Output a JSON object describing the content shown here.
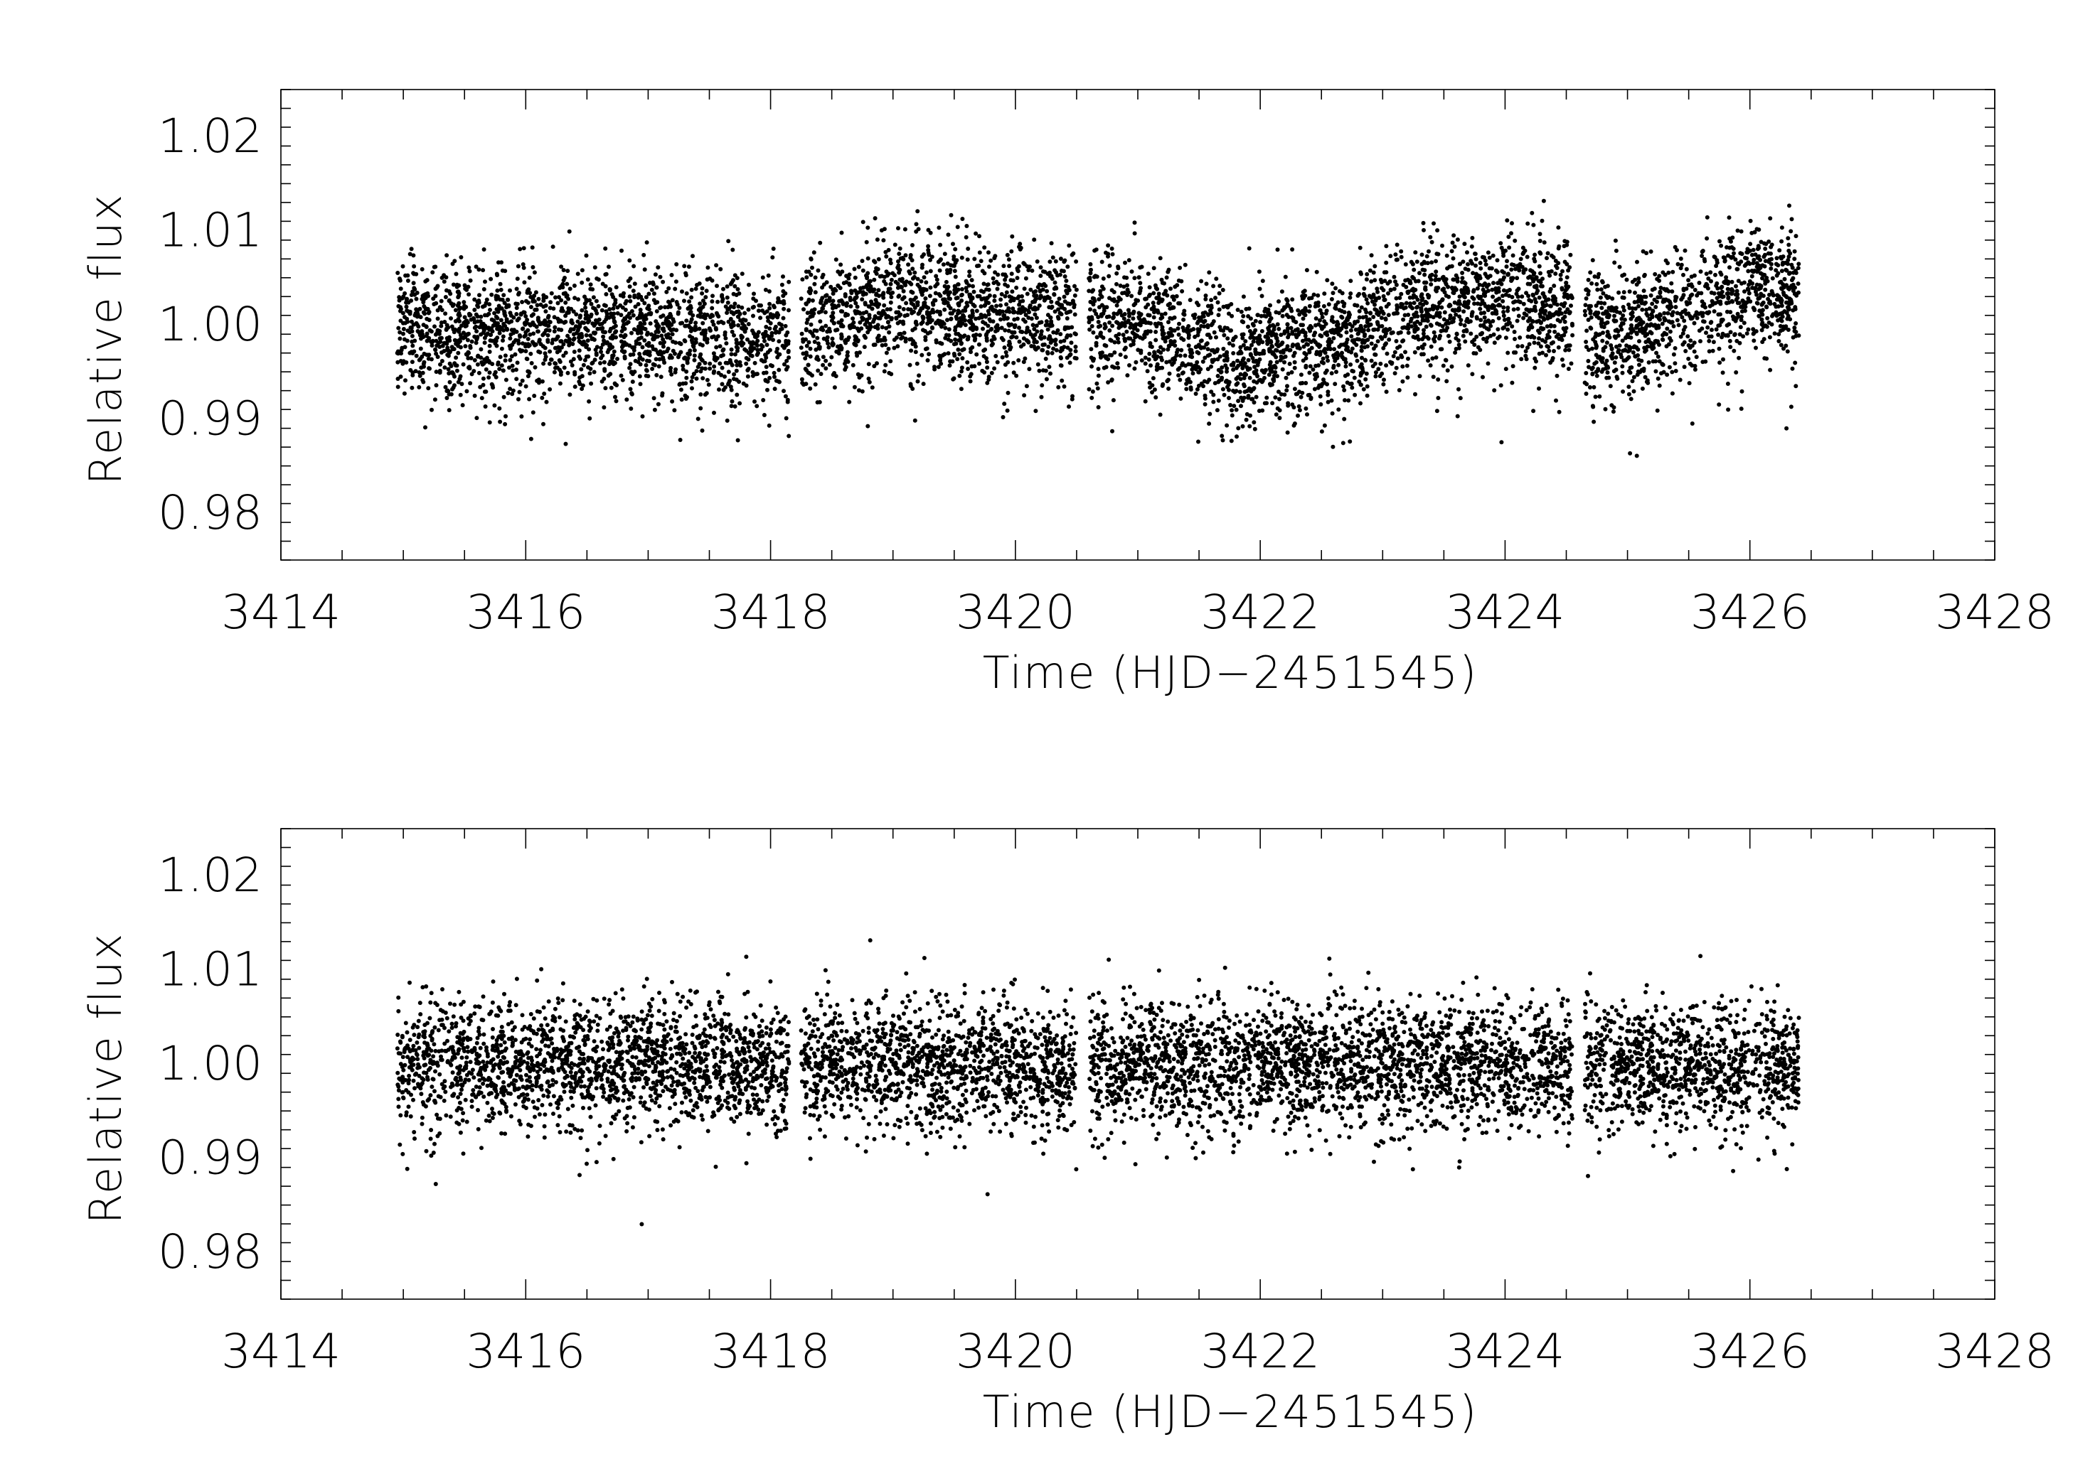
{
  "chart_data": [
    {
      "type": "scatter",
      "panel": "top",
      "xlabel": "Time (HJD−2451545)",
      "ylabel": "Relative flux",
      "xlim": [
        3414,
        3428
      ],
      "ylim": [
        0.975,
        1.025
      ],
      "x_ticks": [
        "3414",
        "3416",
        "3418",
        "3420",
        "3422",
        "3424",
        "3426",
        "3428"
      ],
      "y_ticks": [
        "0.98",
        "0.99",
        "1.00",
        "1.01",
        "1.02"
      ],
      "marker_color": "#000000",
      "data_segments": [
        {
          "x_start": 3414.95,
          "x_end": 3418.15
        },
        {
          "x_start": 3418.25,
          "x_end": 3420.5
        },
        {
          "x_start": 3420.6,
          "x_end": 3424.55
        },
        {
          "x_start": 3424.65,
          "x_end": 3426.4
        }
      ],
      "trend": [
        {
          "x": 3415.0,
          "y": 1.0005
        },
        {
          "x": 3415.5,
          "y": 0.999
        },
        {
          "x": 3416.0,
          "y": 0.9995
        },
        {
          "x": 3417.0,
          "y": 0.999
        },
        {
          "x": 3418.0,
          "y": 0.9985
        },
        {
          "x": 3419.0,
          "y": 1.0025
        },
        {
          "x": 3420.0,
          "y": 1.001
        },
        {
          "x": 3421.0,
          "y": 1.0005
        },
        {
          "x": 3421.8,
          "y": 0.997
        },
        {
          "x": 3422.5,
          "y": 0.998
        },
        {
          "x": 3423.2,
          "y": 1.0015
        },
        {
          "x": 3424.0,
          "y": 1.003
        },
        {
          "x": 3424.5,
          "y": 1.002
        },
        {
          "x": 3424.75,
          "y": 0.9985
        },
        {
          "x": 3425.5,
          "y": 1.0015
        },
        {
          "x": 3426.2,
          "y": 1.004
        },
        {
          "x": 3426.4,
          "y": 1.0035
        }
      ],
      "scatter_sd": 0.0035,
      "n_points": 6500,
      "seed": 17
    },
    {
      "type": "scatter",
      "panel": "bottom",
      "xlabel": "Time (HJD−2451545)",
      "ylabel": "Relative flux",
      "xlim": [
        3414,
        3428
      ],
      "ylim": [
        0.975,
        1.025
      ],
      "x_ticks": [
        "3414",
        "3416",
        "3418",
        "3420",
        "3422",
        "3424",
        "3426",
        "3428"
      ],
      "y_ticks": [
        "0.98",
        "0.99",
        "1.00",
        "1.01",
        "1.02"
      ],
      "marker_color": "#000000",
      "data_segments": [
        {
          "x_start": 3414.95,
          "x_end": 3418.15
        },
        {
          "x_start": 3418.25,
          "x_end": 3420.5
        },
        {
          "x_start": 3420.6,
          "x_end": 3424.55
        },
        {
          "x_start": 3424.65,
          "x_end": 3426.4
        }
      ],
      "trend": [
        {
          "x": 3415.0,
          "y": 1.0
        },
        {
          "x": 3426.4,
          "y": 1.0
        }
      ],
      "scatter_sd": 0.0033,
      "n_points": 6500,
      "seed": 29
    }
  ]
}
